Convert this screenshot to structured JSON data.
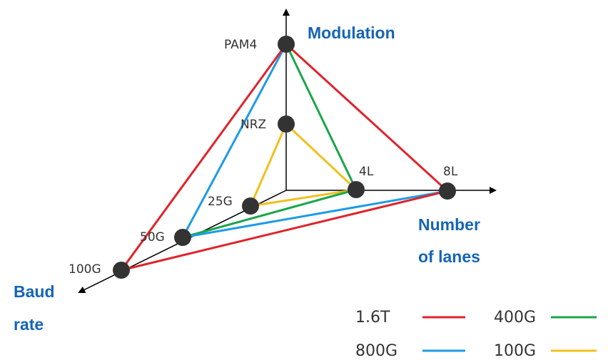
{
  "axes": {
    "modulation": "Modulation",
    "lanes_line1": "Number",
    "lanes_line2": "of lanes",
    "baud_line1": "Baud",
    "baud_line2": "rate"
  },
  "nodes": {
    "pam4": "PAM4",
    "nrz": "NRZ",
    "l4": "4L",
    "l8": "8L",
    "g25": "25G",
    "g50": "50G",
    "g100": "100G"
  },
  "legend": [
    {
      "label": "1.6T",
      "color": "#e0232a"
    },
    {
      "label": "800G",
      "color": "#1e9be6"
    },
    {
      "label": "400G",
      "color": "#1aa64a"
    },
    {
      "label": "100G",
      "color": "#f2c01d"
    }
  ]
}
